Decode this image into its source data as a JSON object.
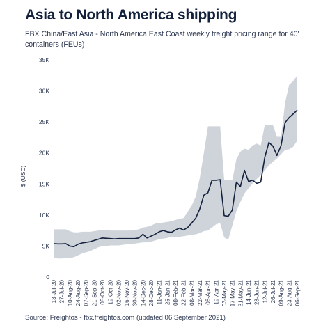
{
  "title": "Asia to North America shipping",
  "subtitle": "FBX China/East Asia - North America East Coast weekly freight pricing range for 40' containers (FEUs)",
  "source": "Source: Freightos - fbx.freightos.com (updated 06 September 2021)",
  "colors": {
    "title": "#14213d",
    "line": "#14213d",
    "range_band": "#cfd4db",
    "axis": "#2a3550"
  },
  "chart_data": {
    "type": "area",
    "title": "Asia to North America shipping",
    "subtitle": "FBX China/East Asia - North America East Coast weekly freight pricing range for 40' containers (FEUs)",
    "ylabel": "$ (USD)",
    "xlabel": "",
    "ylim": [
      0,
      35000
    ],
    "yticks": [
      0,
      5000,
      10000,
      15000,
      20000,
      25000,
      30000,
      35000
    ],
    "ytick_labels": [
      "0",
      "5K",
      "10K",
      "15K",
      "20K",
      "25K",
      "30K",
      "35K"
    ],
    "grid": false,
    "legend": "none",
    "x": [
      "13-Jul-20",
      "20-Jul-20",
      "27-Jul-20",
      "03-Aug-20",
      "10-Aug-20",
      "17-Aug-20",
      "24-Aug-20",
      "31-Aug-20",
      "07-Sep-20",
      "14-Sep-20",
      "21-Sep-20",
      "28-Sep-20",
      "05-Oct-20",
      "12-Oct-20",
      "19-Oct-20",
      "26-Oct-20",
      "02-Nov-20",
      "09-Nov-20",
      "16-Nov-20",
      "23-Nov-20",
      "30-Nov-20",
      "07-Dec-20",
      "14-Dec-20",
      "21-Dec-20",
      "28-Dec-20",
      "04-Jan-21",
      "11-Jan-21",
      "18-Jan-21",
      "25-Jan-21",
      "01-Feb-21",
      "08-Feb-21",
      "15-Feb-21",
      "22-Feb-21",
      "01-Mar-21",
      "08-Mar-21",
      "15-Mar-21",
      "22-Mar-21",
      "29-Mar-21",
      "05-Apr-21",
      "12-Apr-21",
      "19-Apr-21",
      "26-Apr-21",
      "03-May-21",
      "10-May-21",
      "17-May-21",
      "24-May-21",
      "31-May-21",
      "07-Jun-21",
      "14-Jun-21",
      "21-Jun-21",
      "28-Jun-21",
      "05-Jul-21",
      "12-Jul-21",
      "19-Jul-21",
      "26-Jul-21",
      "02-Aug-21",
      "09-Aug-21",
      "16-Aug-21",
      "23-Aug-21",
      "30-Aug-21",
      "06-Sep-21"
    ],
    "x_tick_labels": [
      "13-Jul-20",
      "27-Jul-20",
      "10-Aug-20",
      "24-Aug-20",
      "07-Sep-20",
      "21-Sep-20",
      "05-Oct-20",
      "19-Oct-20",
      "02-Nov-20",
      "16-Nov-20",
      "30-Nov-20",
      "14-Dec-20",
      "28-Dec-20",
      "11-Jan-21",
      "25-Jan-21",
      "08-Feb-21",
      "22-Feb-21",
      "08-Mar-21",
      "22-Mar-21",
      "05-Apr-21",
      "19-Apr-21",
      "03-May-21",
      "17-May-21",
      "31-May-21",
      "14-Jun-21",
      "28-Jun-21",
      "12-Jul-21",
      "26-Jul-21",
      "09-Aug-21",
      "23-Aug-21",
      "06-Sep-21"
    ],
    "series": [
      {
        "role": "line",
        "values": [
          5400,
          5350,
          5350,
          5400,
          5000,
          4900,
          5300,
          5500,
          5600,
          5700,
          5900,
          6100,
          6300,
          6250,
          6200,
          6150,
          6200,
          6200,
          6200,
          6200,
          6200,
          6300,
          6900,
          6300,
          6600,
          6900,
          7300,
          7500,
          7300,
          7200,
          7600,
          7900,
          7600,
          8000,
          8700,
          9500,
          11000,
          13200,
          13600,
          15600,
          15600,
          15700,
          9900,
          9800,
          10800,
          15300,
          14600,
          17200,
          15400,
          15600,
          15100,
          15300,
          19300,
          21700,
          21100,
          19600,
          21200,
          24900,
          25700,
          26300,
          26900
        ]
      },
      {
        "role": "range_high",
        "values": [
          7700,
          7700,
          7700,
          7700,
          7400,
          7200,
          7200,
          7300,
          7300,
          7300,
          7400,
          7500,
          7600,
          7600,
          7500,
          7500,
          7500,
          7500,
          7500,
          7500,
          7600,
          7700,
          8000,
          8100,
          8300,
          8600,
          8700,
          8800,
          8900,
          9000,
          9200,
          9400,
          9500,
          10500,
          11500,
          13000,
          16000,
          20000,
          24300,
          24300,
          24300,
          24300,
          15700,
          15600,
          15600,
          19000,
          20200,
          20700,
          20500,
          21200,
          21500,
          21200,
          24500,
          24500,
          24500,
          22600,
          22600,
          28100,
          31000,
          31600,
          32500
        ]
      },
      {
        "role": "range_low",
        "values": [
          3100,
          3000,
          3000,
          3100,
          3100,
          3200,
          3500,
          3800,
          4000,
          4200,
          4500,
          4800,
          5000,
          5000,
          5100,
          5100,
          5100,
          5200,
          5300,
          5300,
          5400,
          5500,
          5600,
          5600,
          5700,
          5900,
          6100,
          6200,
          6300,
          6500,
          6500,
          6500,
          6600,
          6700,
          6800,
          6900,
          7100,
          7400,
          7500,
          8000,
          8500,
          8700,
          6400,
          6000,
          8300,
          10600,
          12100,
          13500,
          14300,
          15100,
          15800,
          16400,
          17200,
          18000,
          18600,
          19100,
          19800,
          20500,
          20600,
          21000,
          22000
        ]
      }
    ]
  }
}
